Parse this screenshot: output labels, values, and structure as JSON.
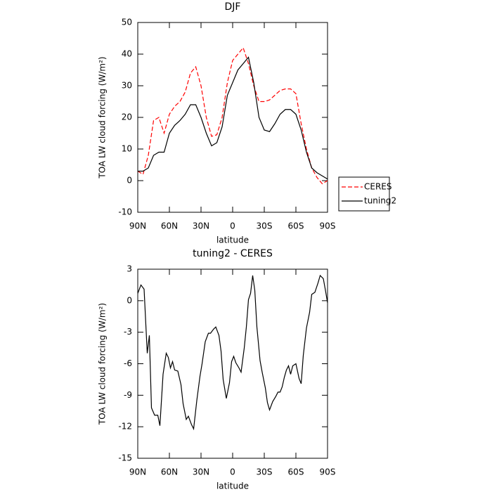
{
  "chart_data": [
    {
      "type": "line",
      "title": "DJF",
      "x_label": "latitude",
      "y_label": "TOA LW cloud forcing (W/m²)",
      "x": [
        90,
        85,
        80,
        75,
        70,
        65,
        60,
        55,
        50,
        45,
        40,
        35,
        30,
        25,
        20,
        15,
        10,
        5,
        0,
        -5,
        -10,
        -15,
        -20,
        -25,
        -30,
        -35,
        -40,
        -45,
        -50,
        -55,
        -60,
        -65,
        -70,
        -75,
        -80,
        -85,
        -90
      ],
      "series": [
        {
          "name": "CERES",
          "color": "#ff0000",
          "dashed": true,
          "values": [
            3,
            2,
            8,
            19,
            20,
            15,
            21,
            23.5,
            25,
            28,
            34,
            36,
            30,
            20,
            14,
            14.5,
            20,
            31,
            38,
            40,
            42,
            37,
            30,
            25,
            25,
            25.5,
            27,
            28.5,
            29,
            29,
            27.5,
            18,
            10,
            4,
            1,
            -1,
            0
          ]
        },
        {
          "name": "tuning2",
          "color": "#000000",
          "dashed": false,
          "values": [
            3,
            3,
            4,
            8,
            9,
            9,
            15,
            17.5,
            19,
            21,
            24,
            24,
            20,
            15,
            11,
            12,
            17,
            27,
            31,
            35,
            37,
            39,
            31,
            20,
            16,
            15.5,
            18,
            21,
            22.5,
            22.5,
            21,
            16,
            9,
            4,
            2.5,
            1.5,
            0.5
          ]
        }
      ],
      "xlim": [
        90,
        -90
      ],
      "xticks": [
        {
          "value": 90,
          "label": "90N"
        },
        {
          "value": 60,
          "label": "60N"
        },
        {
          "value": 30,
          "label": "30N"
        },
        0,
        {
          "value": -30,
          "label": "30S"
        },
        {
          "value": -60,
          "label": "60S"
        },
        {
          "value": -90,
          "label": "90S"
        }
      ],
      "ylim": [
        -10,
        50
      ],
      "yticks": [
        -10,
        0,
        10,
        20,
        30,
        40,
        50
      ],
      "legend": "right"
    },
    {
      "type": "line",
      "title": "tuning2 - CERES",
      "x_label": "latitude",
      "y_label": "TOA LW cloud forcing (W/m²)",
      "x": [
        90,
        87,
        84,
        81,
        79,
        77,
        74,
        71,
        69,
        66,
        63,
        61,
        59,
        57,
        55,
        52,
        49,
        47,
        44,
        42,
        39,
        37,
        34,
        31,
        29,
        26,
        23,
        21,
        18,
        16,
        13,
        11,
        9,
        6,
        3,
        1,
        -1,
        -3,
        -6,
        -8,
        -11,
        -13,
        -15,
        -17,
        -19,
        -21,
        -23,
        -26,
        -28,
        -31,
        -33,
        -35,
        -38,
        -41,
        -43,
        -45,
        -47,
        -49,
        -51,
        -53,
        -55,
        -57,
        -60,
        -63,
        -65,
        -67,
        -70,
        -73,
        -75,
        -78,
        -81,
        -83,
        -86,
        -88,
        -90
      ],
      "values": [
        0.7,
        1.5,
        1.1,
        -5,
        -3.3,
        -10.2,
        -10.9,
        -10.9,
        -11.9,
        -7,
        -5,
        -5.4,
        -6.4,
        -5.8,
        -6.6,
        -6.7,
        -8,
        -9.8,
        -11.3,
        -11,
        -11.8,
        -12.2,
        -9.5,
        -7.2,
        -6,
        -3.9,
        -3.1,
        -3.1,
        -2.7,
        -2.5,
        -3.3,
        -4.8,
        -7.5,
        -9.3,
        -7.8,
        -5.8,
        -5.3,
        -5.9,
        -6.4,
        -6.8,
        -4.5,
        -2.5,
        0.1,
        0.7,
        2.4,
        1,
        -2.5,
        -5.7,
        -6.8,
        -8.3,
        -9.7,
        -10.4,
        -9.6,
        -9.1,
        -8.7,
        -8.7,
        -8.2,
        -7.3,
        -6.6,
        -6.2,
        -7,
        -6.2,
        -6,
        -7.4,
        -7.9,
        -5.2,
        -2.6,
        -1.1,
        0.6,
        0.8,
        1.7,
        2.4,
        2.1,
        1,
        -0.2
      ],
      "color": "#000000",
      "xlim": [
        90,
        -90
      ],
      "xticks": [
        {
          "value": 90,
          "label": "90N"
        },
        {
          "value": 60,
          "label": "60N"
        },
        {
          "value": 30,
          "label": "30N"
        },
        0,
        {
          "value": -30,
          "label": "30S"
        },
        {
          "value": -60,
          "label": "60S"
        },
        {
          "value": -90,
          "label": "90S"
        }
      ],
      "ylim": [
        -15,
        3
      ],
      "yticks": [
        -15,
        -12,
        -9,
        -6,
        -3,
        0,
        3
      ]
    }
  ]
}
